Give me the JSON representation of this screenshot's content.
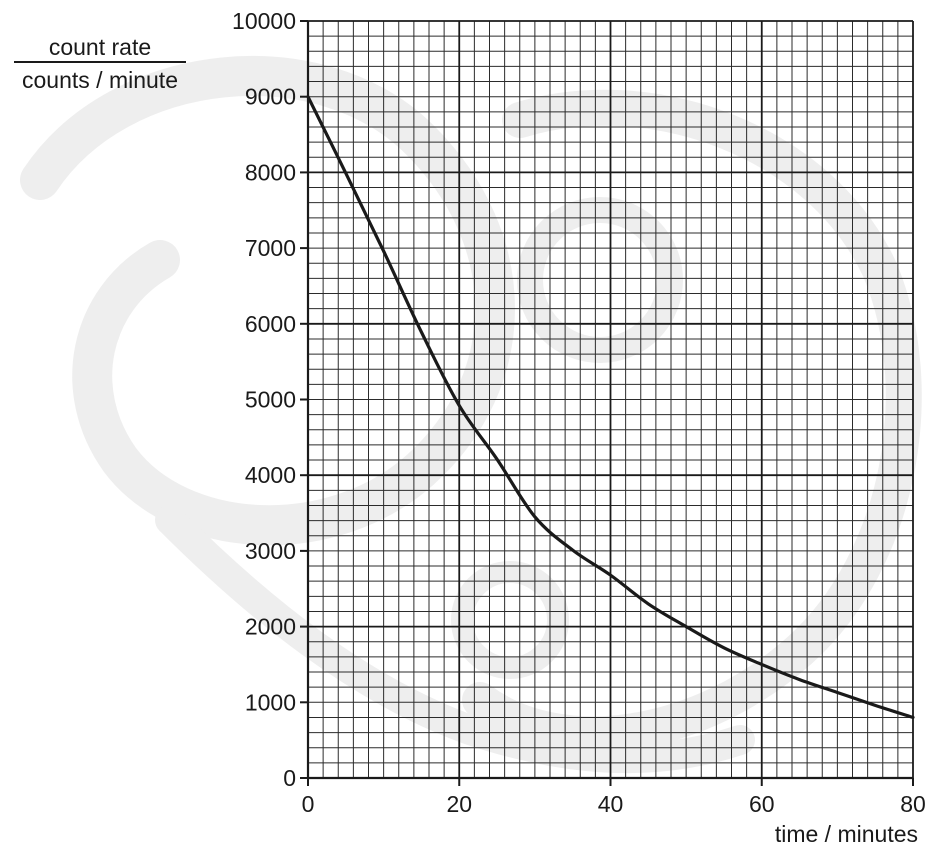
{
  "chart_data": {
    "type": "line",
    "xlabel": "time / minutes",
    "ylabel": {
      "numerator": "count rate",
      "denominator": "counts / minute"
    },
    "xlim": [
      0,
      80
    ],
    "ylim": [
      0,
      10000
    ],
    "x_ticks": [
      0,
      20,
      40,
      60,
      80
    ],
    "y_ticks": [
      0,
      1000,
      2000,
      3000,
      4000,
      5000,
      6000,
      7000,
      8000,
      9000,
      10000
    ],
    "x_tick_labels": [
      "0",
      "20",
      "40",
      "60",
      "80"
    ],
    "y_tick_labels": [
      "0",
      "1000",
      "2000",
      "3000",
      "4000",
      "5000",
      "6000",
      "7000",
      "8000",
      "9000",
      "10000"
    ],
    "grid": {
      "minor_x_step": 2,
      "minor_y_step": 200,
      "major_x_step": 20,
      "major_y_step": 2000
    },
    "series": [
      {
        "x": [
          0,
          5,
          10,
          15,
          20,
          25,
          30,
          35,
          40,
          45,
          50,
          55,
          60,
          65,
          70,
          75,
          80
        ],
        "y": [
          9000,
          7990,
          6960,
          5890,
          4920,
          4210,
          3450,
          3010,
          2680,
          2300,
          2000,
          1720,
          1500,
          1300,
          1130,
          960,
          800
        ],
        "color": "#1a1a1a"
      }
    ]
  }
}
